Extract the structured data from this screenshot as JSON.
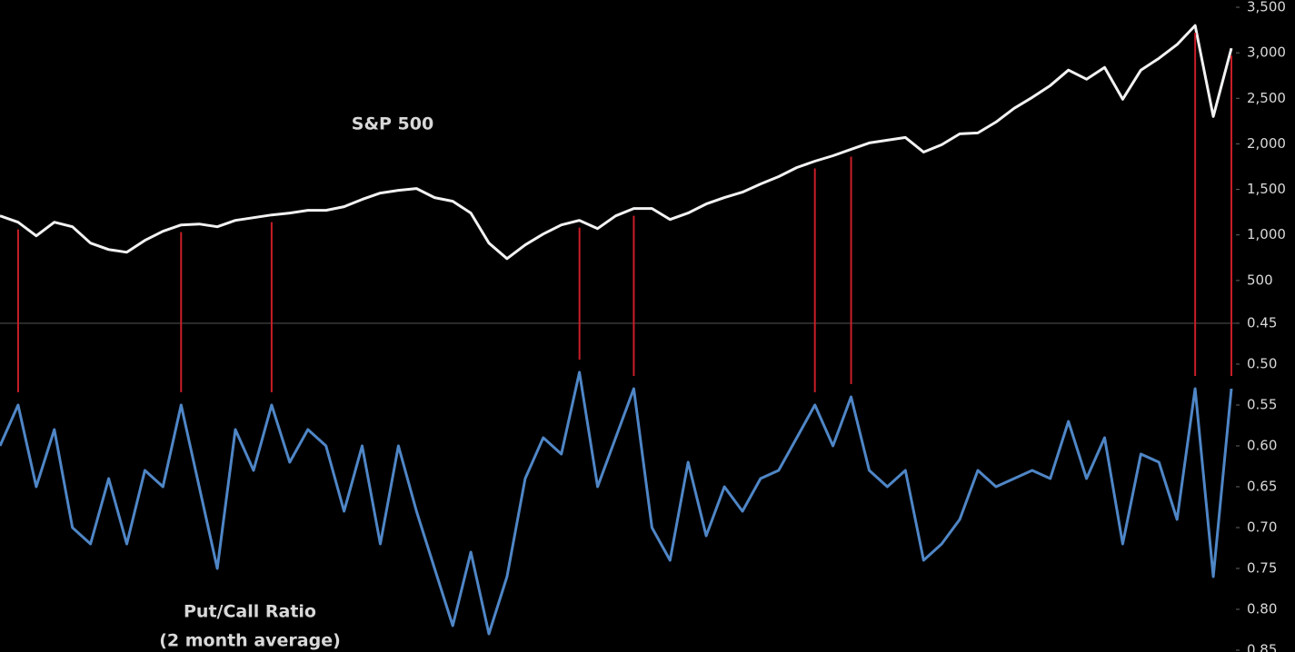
{
  "chart_data": [
    {
      "type": "line",
      "title": "S&P 500",
      "series": [
        {
          "color": "#f2f2f2",
          "values": [
            1210,
            1140,
            990,
            1140,
            1090,
            910,
            840,
            810,
            940,
            1040,
            1110,
            1120,
            1090,
            1160,
            1190,
            1220,
            1240,
            1270,
            1270,
            1310,
            1390,
            1460,
            1490,
            1510,
            1410,
            1370,
            1240,
            910,
            740,
            890,
            1010,
            1110,
            1160,
            1070,
            1210,
            1290,
            1290,
            1170,
            1240,
            1340,
            1410,
            1470,
            1560,
            1640,
            1740,
            1810,
            1870,
            1940,
            2010,
            2040,
            2070,
            1910,
            1990,
            2110,
            2120,
            2240,
            2390,
            2510,
            2640,
            2810,
            2710,
            2840,
            2490,
            2810,
            2940,
            3090,
            3300,
            2300,
            3050
          ]
        }
      ],
      "ylim": [
        0,
        3500
      ],
      "yticks": [
        500,
        {
          "value": 1000,
          "label": "1,000"
        },
        {
          "value": 1500,
          "label": "1,500"
        },
        {
          "value": 2000,
          "label": "2,000"
        },
        {
          "value": 2500,
          "label": "2,500"
        },
        {
          "value": 3000,
          "label": "3,000"
        },
        {
          "value": 3500,
          "label": "3,500"
        }
      ]
    },
    {
      "type": "line",
      "title": "Put/Call Ratio",
      "subtitle": "(2 month average)",
      "inverted": true,
      "series": [
        {
          "color": "#4f86c6",
          "values": [
            0.6,
            0.55,
            0.65,
            0.58,
            0.7,
            0.72,
            0.64,
            0.72,
            0.63,
            0.65,
            0.55,
            0.65,
            0.75,
            0.58,
            0.63,
            0.55,
            0.62,
            0.58,
            0.6,
            0.68,
            0.6,
            0.72,
            0.6,
            0.68,
            0.75,
            0.82,
            0.73,
            0.83,
            0.76,
            0.64,
            0.59,
            0.61,
            0.51,
            0.65,
            0.59,
            0.53,
            0.7,
            0.74,
            0.62,
            0.71,
            0.65,
            0.68,
            0.64,
            0.63,
            0.59,
            0.55,
            0.6,
            0.54,
            0.63,
            0.65,
            0.63,
            0.74,
            0.72,
            0.69,
            0.63,
            0.65,
            0.64,
            0.63,
            0.64,
            0.57,
            0.64,
            0.59,
            0.72,
            0.61,
            0.62,
            0.69,
            0.53,
            0.76,
            0.53
          ]
        }
      ],
      "ylim": [
        0.45,
        0.85
      ],
      "yticks": [
        0.45,
        {
          "value": 0.5,
          "label": "0.50"
        },
        0.55,
        {
          "value": 0.6,
          "label": "0.60"
        },
        0.65,
        {
          "value": 0.7,
          "label": "0.70"
        },
        0.75,
        {
          "value": 0.8,
          "label": "0.80"
        },
        0.85
      ]
    }
  ],
  "signals": {
    "color": "#c81e28",
    "x": [
      1,
      10,
      15,
      32,
      35,
      45,
      47,
      66,
      68
    ]
  }
}
